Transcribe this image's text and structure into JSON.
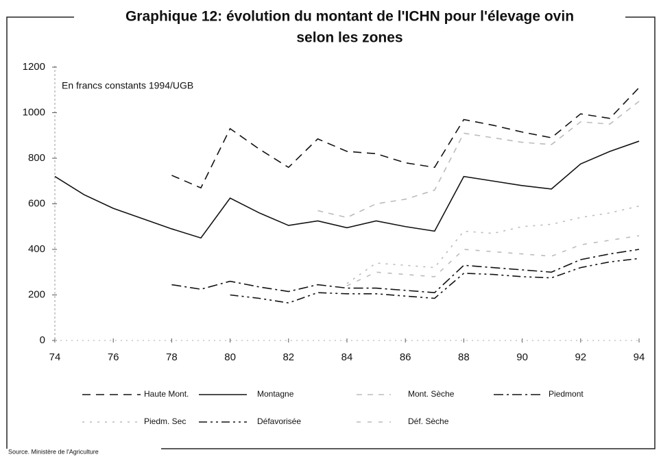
{
  "chart_data": {
    "type": "line",
    "title": [
      "Graphique 12: évolution du montant de l'ICHN pour l'élevage ovin",
      "selon les zones"
    ],
    "annotation": "En francs constants 1994/UGB",
    "source": "Source. Ministère de l'Agriculture",
    "x": [
      74,
      75,
      76,
      77,
      78,
      79,
      80,
      81,
      82,
      83,
      84,
      85,
      86,
      87,
      88,
      89,
      90,
      91,
      92,
      93,
      94
    ],
    "xlim": [
      74,
      94
    ],
    "xticks": [
      74,
      76,
      78,
      80,
      82,
      84,
      86,
      88,
      90,
      92,
      94
    ],
    "ylim": [
      0,
      1200
    ],
    "yticks": [
      0,
      200,
      400,
      600,
      800,
      1000,
      1200
    ],
    "series": [
      {
        "name": "Haute Mont.",
        "color": "#111111",
        "dash": "12 8",
        "values": [
          null,
          null,
          null,
          null,
          725,
          670,
          930,
          840,
          760,
          885,
          830,
          820,
          780,
          760,
          970,
          945,
          915,
          890,
          995,
          975,
          1110
        ]
      },
      {
        "name": "Montagne",
        "color": "#111111",
        "dash": "none",
        "values": [
          720,
          640,
          580,
          535,
          490,
          450,
          625,
          560,
          505,
          525,
          495,
          525,
          500,
          480,
          720,
          700,
          680,
          665,
          775,
          830,
          875
        ]
      },
      {
        "name": "Mont. Sèche",
        "color": "#bbbbbb",
        "dash": "8 8",
        "values": [
          null,
          null,
          null,
          null,
          null,
          null,
          null,
          null,
          null,
          570,
          540,
          600,
          620,
          660,
          910,
          890,
          870,
          860,
          960,
          950,
          1050
        ]
      },
      {
        "name": "Piedmont",
        "color": "#111111",
        "dash": "14 5 3 5",
        "values": [
          null,
          null,
          null,
          null,
          245,
          225,
          260,
          235,
          215,
          245,
          230,
          230,
          220,
          210,
          330,
          320,
          310,
          300,
          355,
          380,
          400
        ]
      },
      {
        "name": "Piedm. Sec",
        "color": "#bbbbbb",
        "dash": "3 8",
        "values": [
          null,
          null,
          null,
          null,
          null,
          null,
          null,
          null,
          null,
          null,
          250,
          340,
          330,
          320,
          480,
          470,
          500,
          510,
          540,
          560,
          590
        ]
      },
      {
        "name": "Défavorisée",
        "color": "#111111",
        "dash": "12 5 3 5 3 5",
        "values": [
          null,
          null,
          null,
          null,
          null,
          null,
          200,
          185,
          165,
          210,
          205,
          205,
          195,
          185,
          295,
          290,
          280,
          275,
          320,
          345,
          360
        ]
      },
      {
        "name": "Déf. Sèche",
        "color": "#bbbbbb",
        "dash": "6 10",
        "values": [
          null,
          null,
          null,
          null,
          null,
          null,
          null,
          null,
          null,
          null,
          240,
          300,
          290,
          280,
          400,
          390,
          380,
          370,
          420,
          440,
          460
        ]
      }
    ]
  }
}
